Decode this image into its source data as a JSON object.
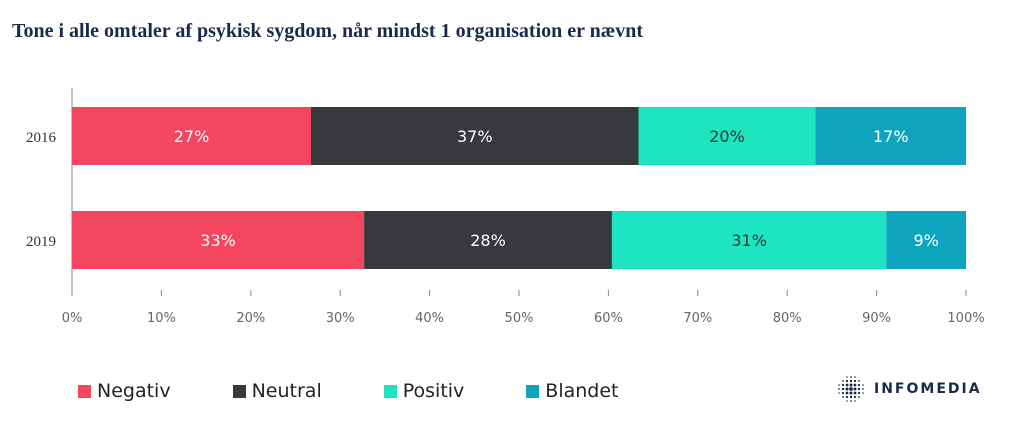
{
  "title": "Tone i alle omtaler af psykisk sygdom, når mindst 1 organisation er nævnt",
  "chart_data": {
    "type": "bar",
    "orientation": "horizontal",
    "stacked": true,
    "categories": [
      "2016",
      "2019"
    ],
    "series": [
      {
        "name": "Negativ",
        "color": "#f4475f",
        "values": [
          27,
          33
        ],
        "labels": [
          "27%",
          "33%"
        ],
        "label_color": "#ffffff"
      },
      {
        "name": "Neutral",
        "color": "#38393d",
        "values": [
          37,
          28
        ],
        "labels": [
          "37%",
          "28%"
        ],
        "label_color": "#ffffff"
      },
      {
        "name": "Positiv",
        "color": "#1de5c1",
        "values": [
          20,
          31
        ],
        "labels": [
          "20%",
          "31%"
        ],
        "label_color": "#333333"
      },
      {
        "name": "Blandet",
        "color": "#0fa4bd",
        "values": [
          17,
          9
        ],
        "labels": [
          "17%",
          "9%"
        ],
        "label_color": "#ffffff"
      }
    ],
    "xlim": [
      0,
      100
    ],
    "x_ticks": [
      "0%",
      "10%",
      "20%",
      "30%",
      "40%",
      "50%",
      "60%",
      "70%",
      "80%",
      "90%",
      "100%"
    ],
    "legend_position": "bottom-left",
    "grid": false
  },
  "logo": {
    "text": "INFOMEDIA"
  }
}
